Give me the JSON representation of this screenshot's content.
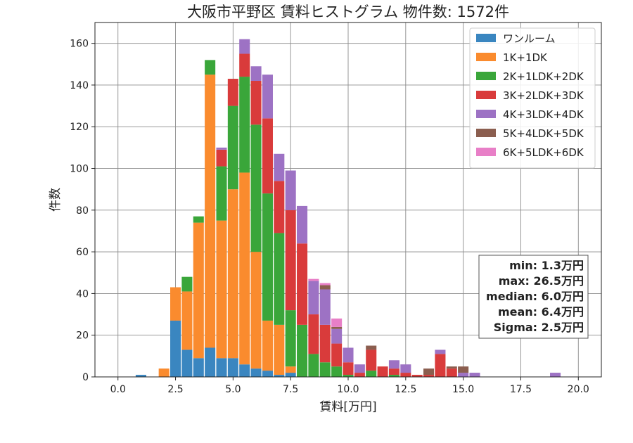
{
  "chart_data": {
    "type": "bar",
    "stacked": true,
    "title": "大阪市平野区 賃料ヒストグラム  物件数: 1572件",
    "xlabel": "賃料[万円]",
    "ylabel": "件数",
    "xlim": [
      -1.0,
      21.0
    ],
    "ylim": [
      0,
      170
    ],
    "xticks": [
      0.0,
      2.5,
      5.0,
      7.5,
      10.0,
      12.5,
      15.0,
      17.5,
      20.0
    ],
    "xtick_labels": [
      "0.0",
      "2.5",
      "5.0",
      "7.5",
      "10.0",
      "12.5",
      "15.0",
      "17.5",
      "20.0"
    ],
    "yticks": [
      0,
      20,
      40,
      60,
      80,
      100,
      120,
      140,
      160
    ],
    "ytick_labels": [
      "0",
      "20",
      "40",
      "60",
      "80",
      "100",
      "120",
      "140",
      "160"
    ],
    "grid": true,
    "legend_position": "top-right",
    "bin_width": 0.5,
    "bins": [
      1.0,
      2.0,
      2.5,
      3.0,
      3.5,
      4.0,
      4.5,
      5.0,
      5.5,
      6.0,
      6.5,
      7.0,
      7.5,
      8.0,
      8.5,
      9.0,
      9.5,
      10.0,
      10.5,
      11.0,
      11.5,
      12.0,
      12.5,
      13.0,
      13.5,
      14.0,
      14.5,
      15.0,
      15.5,
      19.0
    ],
    "series": [
      {
        "name": "ワンルーム",
        "color": "#3a86c0",
        "values": [
          1,
          0,
          27,
          13,
          9,
          14,
          9,
          9,
          6,
          4,
          3,
          1,
          2,
          0,
          0,
          0,
          0,
          0,
          0,
          0,
          0,
          0,
          0,
          0,
          0,
          0,
          0,
          0,
          0,
          0
        ]
      },
      {
        "name": "1K+1DK",
        "color": "#fa8b2e",
        "values": [
          0,
          4,
          16,
          28,
          65,
          131,
          66,
          81,
          92,
          56,
          24,
          24,
          3,
          0,
          0,
          0,
          0,
          0,
          0,
          0,
          0,
          0,
          0,
          0,
          0,
          0,
          0,
          0,
          0,
          0
        ]
      },
      {
        "name": "2K+1LDK+2DK",
        "color": "#3aa63a",
        "values": [
          0,
          0,
          0,
          7,
          3,
          7,
          26,
          40,
          46,
          61,
          61,
          44,
          27,
          25,
          11,
          7,
          5,
          1,
          0,
          3,
          0,
          1,
          0,
          0,
          0,
          0,
          0,
          0,
          0,
          0
        ]
      },
      {
        "name": "3K+2LDK+3DK",
        "color": "#d93b3b",
        "values": [
          0,
          0,
          0,
          0,
          0,
          0,
          8,
          13,
          11,
          21,
          36,
          25,
          48,
          39,
          19,
          18,
          11,
          6,
          2,
          10,
          5,
          3,
          2,
          1,
          1,
          11,
          4,
          0,
          0,
          0
        ]
      },
      {
        "name": "4K+3LDK+4DK",
        "color": "#9d72c4",
        "values": [
          0,
          0,
          0,
          0,
          0,
          0,
          1,
          0,
          7,
          7,
          21,
          13,
          19,
          18,
          16,
          17,
          7,
          7,
          4,
          0,
          0,
          4,
          4,
          0,
          0,
          2,
          0,
          2,
          2,
          2
        ]
      },
      {
        "name": "5K+4LDK+5DK",
        "color": "#8b5e4f",
        "values": [
          0,
          0,
          0,
          0,
          0,
          0,
          0,
          0,
          0,
          0,
          0,
          0,
          0,
          0,
          0,
          2,
          1,
          0,
          0,
          2,
          0,
          0,
          0,
          0,
          3,
          0,
          1,
          3,
          0,
          0
        ]
      },
      {
        "name": "6K+5LDK+6DK",
        "color": "#e87fc7",
        "values": [
          0,
          0,
          0,
          0,
          0,
          0,
          0,
          0,
          0,
          0,
          0,
          0,
          0,
          0,
          1,
          1,
          4,
          0,
          0,
          0,
          0,
          0,
          0,
          0,
          0,
          0,
          0,
          0,
          0,
          0
        ]
      }
    ],
    "stats": [
      "min: 1.3万円",
      "max: 26.5万円",
      "median: 6.0万円",
      "mean: 6.4万円",
      "Sigma: 2.5万円"
    ]
  }
}
